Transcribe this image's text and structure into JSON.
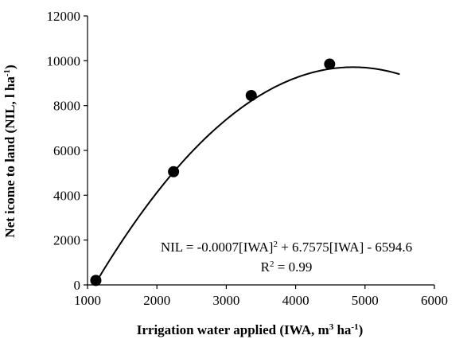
{
  "chart_data": {
    "type": "scatter",
    "title": "",
    "x_axis": {
      "label_parts": [
        "Irrigation water applied (IWA, m",
        "3",
        " ha",
        "-1",
        ")"
      ],
      "range": [
        1000,
        6000
      ],
      "ticks": [
        1000,
        2000,
        3000,
        4000,
        5000,
        6000
      ],
      "tick_labels": [
        "1000",
        "2000",
        "3000",
        "4000",
        "5000",
        "6000"
      ]
    },
    "y_axis": {
      "label_parts": [
        "Net icome to land (NIL, l ha",
        "-1",
        ")"
      ],
      "range": [
        0,
        12000
      ],
      "ticks": [
        0,
        2000,
        4000,
        6000,
        8000,
        10000,
        12000
      ],
      "tick_labels": [
        "0",
        "2000",
        "4000",
        "6000",
        "8000",
        "10000",
        "12000"
      ]
    },
    "grid": false,
    "legend": "none",
    "series": [
      {
        "points": [
          {
            "x": 1120,
            "y": 200
          },
          {
            "x": 2240,
            "y": 5050
          },
          {
            "x": 3360,
            "y": 8450
          },
          {
            "x": 4490,
            "y": 9850
          }
        ],
        "marker": "filled-circle",
        "color": "#000000"
      }
    ],
    "trendline": {
      "kind": "polynomial-2",
      "coefficients": {
        "a": -0.0007,
        "b": 6.7575,
        "c": -6594.6
      },
      "x_range": [
        1120,
        5500
      ],
      "color": "#000000"
    },
    "annotation": {
      "equation": "NIL = -0.0007[IWA]2 + 6.7575[IWA] - 6594.6",
      "equation_parts": [
        "NIL = -0.0007[IWA]",
        "2",
        " + 6.7575[IWA] - 6594.6"
      ],
      "r2_parts": [
        "R",
        "2",
        " = 0.99"
      ]
    }
  }
}
